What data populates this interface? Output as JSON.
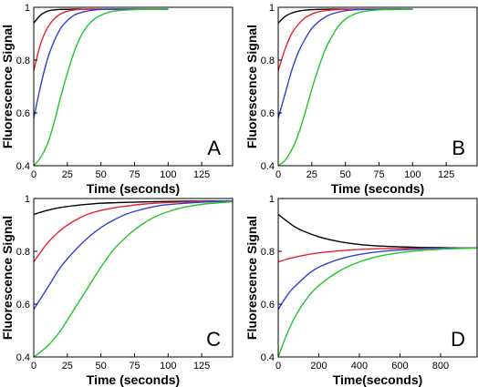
{
  "colors": {
    "black": "#000000",
    "red": "#e8212b",
    "blue": "#2f3fd6",
    "green": "#22c52a"
  },
  "chart_data": [
    {
      "type": "line",
      "panel_label": "A",
      "xlabel": "Time (seconds)",
      "ylabel": "Fluorescence Signal",
      "xlim": [
        0,
        148
      ],
      "ylim": [
        0.4,
        1.0
      ],
      "xticks": [
        "0",
        "25",
        "50",
        "75",
        "100",
        "125"
      ],
      "yticks": [
        "0.4",
        "0.6",
        "0.8",
        "1"
      ],
      "grid": false,
      "series": [
        {
          "color": "black",
          "x": [
            0,
            5,
            10,
            15,
            20,
            30,
            40,
            60,
            80,
            100
          ],
          "y": [
            0.94,
            0.97,
            0.985,
            0.99,
            0.992,
            0.993,
            0.993,
            0.993,
            0.993,
            0.993
          ]
        },
        {
          "color": "red",
          "x": [
            0,
            5,
            10,
            15,
            20,
            25,
            30,
            40,
            50,
            60,
            80,
            100
          ],
          "y": [
            0.76,
            0.86,
            0.92,
            0.955,
            0.975,
            0.985,
            0.99,
            0.993,
            0.993,
            0.993,
            0.993,
            0.993
          ]
        },
        {
          "color": "blue",
          "x": [
            0,
            5,
            10,
            15,
            20,
            25,
            30,
            35,
            40,
            50,
            60,
            80,
            100
          ],
          "y": [
            0.58,
            0.7,
            0.8,
            0.87,
            0.92,
            0.95,
            0.97,
            0.98,
            0.986,
            0.992,
            0.993,
            0.993,
            0.993
          ]
        },
        {
          "color": "green",
          "x": [
            0,
            5,
            10,
            15,
            20,
            25,
            30,
            35,
            40,
            45,
            50,
            55,
            60,
            70,
            80,
            100
          ],
          "y": [
            0.4,
            0.43,
            0.48,
            0.56,
            0.66,
            0.75,
            0.83,
            0.89,
            0.93,
            0.955,
            0.97,
            0.98,
            0.986,
            0.99,
            0.992,
            0.993
          ]
        }
      ]
    },
    {
      "type": "line",
      "panel_label": "B",
      "xlabel": "Time (seconds)",
      "ylabel": "Fluorescence Signal",
      "xlim": [
        0,
        148
      ],
      "ylim": [
        0.4,
        1.0
      ],
      "xticks": [
        "0",
        "25",
        "50",
        "75",
        "100",
        "125"
      ],
      "yticks": [
        "0.4",
        "0.6",
        "0.8",
        "1"
      ],
      "grid": false,
      "series": [
        {
          "color": "black",
          "x": [
            0,
            5,
            10,
            15,
            20,
            30,
            40,
            60,
            80,
            100
          ],
          "y": [
            0.94,
            0.965,
            0.978,
            0.985,
            0.989,
            0.992,
            0.993,
            0.993,
            0.993,
            0.993
          ]
        },
        {
          "color": "red",
          "x": [
            0,
            5,
            10,
            15,
            20,
            25,
            30,
            40,
            50,
            60,
            80,
            100
          ],
          "y": [
            0.76,
            0.84,
            0.9,
            0.935,
            0.96,
            0.974,
            0.983,
            0.99,
            0.992,
            0.993,
            0.993,
            0.993
          ]
        },
        {
          "color": "blue",
          "x": [
            0,
            5,
            10,
            15,
            20,
            25,
            30,
            35,
            40,
            50,
            60,
            80,
            100
          ],
          "y": [
            0.58,
            0.67,
            0.76,
            0.83,
            0.88,
            0.92,
            0.945,
            0.963,
            0.975,
            0.987,
            0.991,
            0.993,
            0.993
          ]
        },
        {
          "color": "green",
          "x": [
            0,
            5,
            10,
            15,
            20,
            25,
            30,
            35,
            40,
            45,
            50,
            55,
            60,
            70,
            80,
            100
          ],
          "y": [
            0.4,
            0.42,
            0.46,
            0.52,
            0.6,
            0.69,
            0.77,
            0.84,
            0.89,
            0.93,
            0.955,
            0.97,
            0.98,
            0.988,
            0.991,
            0.993
          ]
        }
      ]
    },
    {
      "type": "line",
      "panel_label": "C",
      "xlabel": "Time (seconds)",
      "ylabel": "Fluorescence Signal",
      "xlim": [
        0,
        148
      ],
      "ylim": [
        0.4,
        1.0
      ],
      "xticks": [
        "0",
        "25",
        "50",
        "75",
        "100",
        "125"
      ],
      "yticks": [
        "0.4",
        "0.6",
        "0.8",
        "1"
      ],
      "grid": false,
      "series": [
        {
          "color": "black",
          "x": [
            0,
            10,
            20,
            30,
            40,
            50,
            60,
            80,
            100,
            125,
            148
          ],
          "y": [
            0.94,
            0.955,
            0.966,
            0.973,
            0.978,
            0.982,
            0.984,
            0.987,
            0.989,
            0.99,
            0.99
          ]
        },
        {
          "color": "red",
          "x": [
            0,
            10,
            20,
            30,
            40,
            50,
            60,
            70,
            80,
            100,
            125,
            148
          ],
          "y": [
            0.76,
            0.83,
            0.88,
            0.915,
            0.94,
            0.955,
            0.965,
            0.972,
            0.978,
            0.985,
            0.988,
            0.99
          ]
        },
        {
          "color": "blue",
          "x": [
            0,
            10,
            20,
            30,
            40,
            50,
            60,
            70,
            80,
            90,
            100,
            125,
            148
          ],
          "y": [
            0.58,
            0.66,
            0.74,
            0.8,
            0.85,
            0.89,
            0.92,
            0.943,
            0.958,
            0.97,
            0.977,
            0.986,
            0.99
          ]
        },
        {
          "color": "green",
          "x": [
            0,
            10,
            20,
            30,
            40,
            50,
            60,
            70,
            80,
            90,
            100,
            110,
            125,
            148
          ],
          "y": [
            0.4,
            0.44,
            0.5,
            0.58,
            0.66,
            0.74,
            0.81,
            0.86,
            0.9,
            0.93,
            0.95,
            0.965,
            0.978,
            0.988
          ]
        }
      ]
    },
    {
      "type": "line",
      "panel_label": "D",
      "xlabel": "Time(seconds)",
      "ylabel": "Fluorescence Signal",
      "xlim": [
        0,
        980
      ],
      "ylim": [
        0.4,
        1.0
      ],
      "xticks": [
        "0",
        "200",
        "400",
        "600",
        "800"
      ],
      "yticks": [
        "0.4",
        "0.6",
        "0.8",
        "1"
      ],
      "grid": false,
      "series": [
        {
          "color": "black",
          "x": [
            0,
            50,
            100,
            200,
            300,
            400,
            500,
            600,
            700,
            800,
            900,
            980
          ],
          "y": [
            0.94,
            0.91,
            0.885,
            0.855,
            0.837,
            0.826,
            0.82,
            0.817,
            0.815,
            0.814,
            0.813,
            0.813
          ]
        },
        {
          "color": "red",
          "x": [
            0,
            50,
            100,
            200,
            300,
            400,
            500,
            600,
            700,
            800,
            900,
            980
          ],
          "y": [
            0.76,
            0.772,
            0.781,
            0.794,
            0.802,
            0.807,
            0.81,
            0.811,
            0.812,
            0.812,
            0.813,
            0.813
          ]
        },
        {
          "color": "blue",
          "x": [
            0,
            50,
            100,
            150,
            200,
            300,
            400,
            500,
            600,
            700,
            800,
            900,
            980
          ],
          "y": [
            0.58,
            0.64,
            0.68,
            0.715,
            0.74,
            0.77,
            0.788,
            0.799,
            0.805,
            0.809,
            0.811,
            0.812,
            0.813
          ]
        },
        {
          "color": "green",
          "x": [
            0,
            50,
            100,
            150,
            200,
            300,
            400,
            500,
            600,
            700,
            800,
            900,
            980
          ],
          "y": [
            0.4,
            0.5,
            0.575,
            0.63,
            0.67,
            0.725,
            0.76,
            0.782,
            0.795,
            0.803,
            0.808,
            0.811,
            0.812
          ]
        }
      ]
    }
  ]
}
